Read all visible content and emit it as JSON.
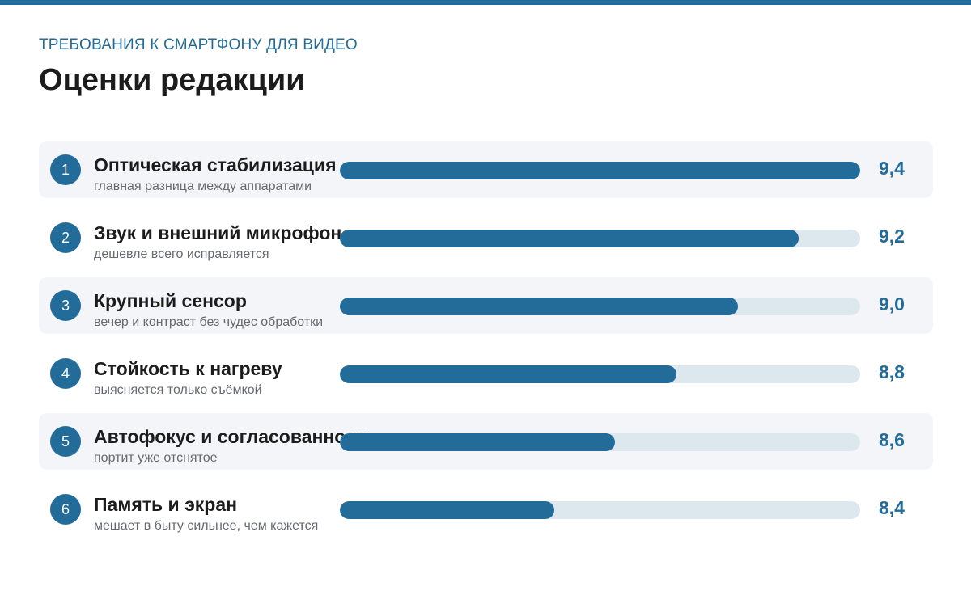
{
  "header": {
    "kicker": "ТРЕБОВАНИЯ К СМАРТФОНУ ДЛЯ ВИДЕО",
    "title": "Оценки редакции"
  },
  "colors": {
    "accent": "#236c99",
    "track": "#dce7ee",
    "row_shade": "#f4f5f8"
  },
  "chart_data": {
    "type": "bar",
    "orientation": "horizontal",
    "title": "Оценки редакции",
    "categories": [
      "Оптическая стабилизация",
      "Звук и внешний микрофон",
      "Крупный сенсор",
      "Стойкость к нагреву",
      "Автофокус и согласованность",
      "Память и экран"
    ],
    "subtitles": [
      "главная разница между аппаратами",
      "дешевле всего исправляется",
      "вечер и контраст без чудес обработки",
      "выясняется только съёмкой",
      "портит уже отснятое",
      "мешает в быту сильнее, чем кажется"
    ],
    "ranks": [
      "1",
      "2",
      "3",
      "4",
      "5",
      "6"
    ],
    "values": [
      9.4,
      9.2,
      9.0,
      8.8,
      8.6,
      8.4
    ],
    "value_labels": [
      "9,4",
      "9,2",
      "9,0",
      "8,8",
      "8,6",
      "8,4"
    ],
    "xlim": [
      7.7,
      9.4
    ],
    "grid": false,
    "legend": "none"
  }
}
